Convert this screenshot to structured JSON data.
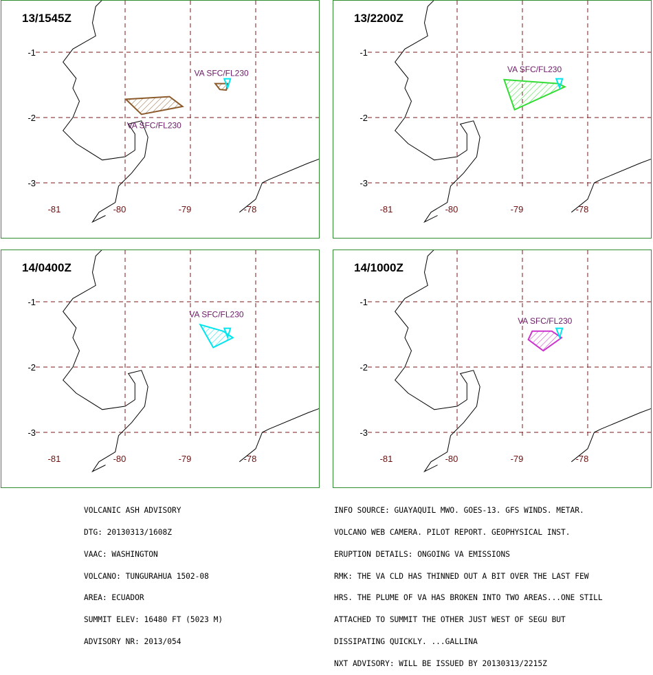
{
  "panels": [
    {
      "title": "13/1545Z",
      "areas": [
        {
          "label": "VA SFC/FL230",
          "color": "#8b5a2b",
          "polygon": [
            [
              -79.75,
              -1.95
            ],
            [
              -79.12,
              -1.83
            ],
            [
              -79.32,
              -1.68
            ],
            [
              -79.99,
              -1.72
            ]
          ]
        },
        {
          "label": "VA SFC/FL230",
          "color": "#8b5a2b",
          "polygon": [
            [
              -78.62,
              -1.48
            ],
            [
              -78.43,
              -1.48
            ],
            [
              -78.45,
              -1.58
            ],
            [
              -78.55,
              -1.57
            ]
          ]
        }
      ],
      "summit": {
        "lon": -78.44,
        "lat": -1.47,
        "color": "#00e5ee"
      }
    },
    {
      "title": "13/2200Z",
      "areas": [
        {
          "label": "VA SFC/FL230",
          "color": "#33dd33",
          "polygon": [
            [
              -79.28,
              -1.42
            ],
            [
              -78.45,
              -1.48
            ],
            [
              -78.35,
              -1.53
            ],
            [
              -79.12,
              -1.88
            ]
          ]
        }
      ],
      "summit": {
        "lon": -78.44,
        "lat": -1.47,
        "color": "#00e5ee"
      }
    },
    {
      "title": "14/0400Z",
      "areas": [
        {
          "label": "VA SFC/FL230",
          "color": "#00e5ee",
          "polygon": [
            [
              -78.85,
              -1.35
            ],
            [
              -78.5,
              -1.45
            ],
            [
              -78.35,
              -1.55
            ],
            [
              -78.65,
              -1.7
            ]
          ]
        }
      ],
      "summit": {
        "lon": -78.44,
        "lat": -1.47,
        "color": "#00e5ee"
      }
    },
    {
      "title": "14/1000Z",
      "areas": [
        {
          "label": "VA SFC/FL230",
          "color": "#cc33cc",
          "polygon": [
            [
              -78.85,
              -1.45
            ],
            [
              -78.55,
              -1.45
            ],
            [
              -78.4,
              -1.55
            ],
            [
              -78.68,
              -1.75
            ],
            [
              -78.91,
              -1.58
            ]
          ]
        }
      ],
      "summit": {
        "lon": -78.44,
        "lat": -1.47,
        "color": "#00e5ee"
      }
    }
  ],
  "map": {
    "lon_ticks": [
      "-81",
      "-80",
      "-79",
      "-78"
    ],
    "lat_ticks": [
      "-1",
      "-2",
      "-3"
    ],
    "lon_values": [
      -81,
      -80,
      -79,
      -78
    ],
    "lat_values": [
      -1,
      -2,
      -3
    ],
    "coast": [
      [
        -79.6,
        0.75
      ],
      [
        -79.7,
        0.6
      ],
      [
        -79.9,
        0.45
      ],
      [
        -80.1,
        0.2
      ],
      [
        -80.05,
        0.05
      ],
      [
        -80.25,
        -0.1
      ],
      [
        -80.45,
        -0.3
      ],
      [
        -80.5,
        -0.55
      ],
      [
        -80.45,
        -0.75
      ],
      [
        -80.8,
        -0.95
      ],
      [
        -80.95,
        -1.15
      ],
      [
        -80.75,
        -1.4
      ],
      [
        -80.8,
        -1.55
      ],
      [
        -80.7,
        -1.75
      ],
      [
        -80.8,
        -2.0
      ],
      [
        -80.95,
        -2.2
      ],
      [
        -80.75,
        -2.4
      ],
      [
        -80.35,
        -2.65
      ],
      [
        -80.0,
        -2.6
      ],
      [
        -79.85,
        -2.5
      ],
      [
        -79.85,
        -2.25
      ],
      [
        -79.95,
        -2.1
      ],
      [
        -79.75,
        -2.05
      ],
      [
        -79.65,
        -2.3
      ],
      [
        -79.7,
        -2.6
      ],
      [
        -79.9,
        -2.85
      ],
      [
        -80.1,
        -3.05
      ],
      [
        -80.15,
        -3.3
      ],
      [
        -80.4,
        -3.45
      ],
      [
        -80.5,
        -3.6
      ],
      [
        -80.3,
        -3.5
      ]
    ],
    "border1": [
      [
        -80.05,
        0.7
      ],
      [
        -80.0,
        0.95
      ]
    ],
    "border2": [
      [
        -78.25,
        -3.45
      ],
      [
        -78.0,
        -3.25
      ],
      [
        -77.9,
        -3.0
      ],
      [
        -77.8,
        -2.95
      ],
      [
        -77.2,
        -2.7
      ],
      [
        -76.8,
        -2.55
      ],
      [
        -76.8,
        -2.45
      ]
    ],
    "colors": {
      "grid": "#7a1a1a",
      "coast": "#000000",
      "hatch_note": "diagonal"
    }
  },
  "advisory_left": [
    "VOLCANIC ASH ADVISORY",
    "DTG: 20130313/1608Z",
    "VAAC: WASHINGTON",
    "VOLCANO: TUNGURAHUA 1502-08",
    "AREA: ECUADOR",
    "SUMMIT ELEV: 16480 FT (5023 M)",
    "ADVISORY NR: 2013/054"
  ],
  "advisory_right": [
    "INFO SOURCE: GUAYAQUIL MWO. GOES-13. GFS WINDS. METAR.",
    "VOLCANO WEB CAMERA. PILOT REPORT. GEOPHYSICAL INST.",
    "ERUPTION DETAILS: ONGOING VA EMISSIONS",
    "RMK: THE VA CLD HAS THINNED OUT A BIT OVER THE LAST FEW",
    "HRS. THE PLUME OF VA HAS BROKEN INTO TWO AREAS...ONE STILL",
    "ATTACHED TO SUMMIT THE OTHER JUST WEST OF SEGU BUT",
    "DISSIPATING QUICKLY. ...GALLINA",
    "NXT ADVISORY: WILL BE ISSUED BY 20130313/2215Z"
  ]
}
